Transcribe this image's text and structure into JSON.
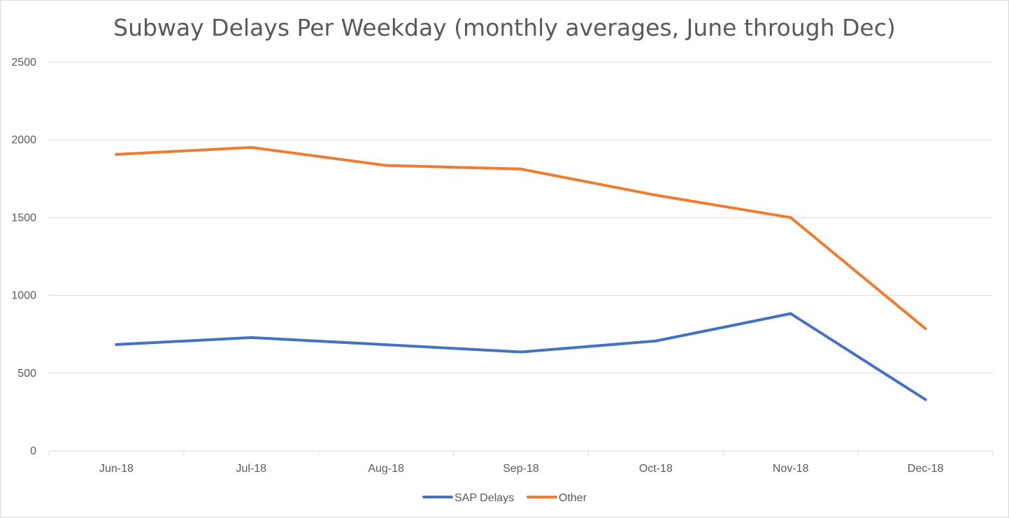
{
  "chart_data": {
    "type": "line",
    "title": "Subway Delays Per Weekday (monthly averages, June through Dec)",
    "categories": [
      "Jun-18",
      "Jul-18",
      "Aug-18",
      "Sep-18",
      "Oct-18",
      "Nov-18",
      "Dec-18"
    ],
    "series": [
      {
        "name": "SAP Delays",
        "color": "#4472c4",
        "values": [
          684,
          729,
          683,
          636,
          707,
          883,
          330
        ]
      },
      {
        "name": "Other",
        "color": "#ed7d31",
        "values": [
          1907,
          1952,
          1836,
          1813,
          1645,
          1501,
          786
        ]
      }
    ],
    "yticks": [
      0,
      500,
      1000,
      1500,
      2000,
      2500
    ],
    "ylim": [
      0,
      2500
    ],
    "xlabel": "",
    "ylabel": "",
    "grid": true,
    "legend_position": "bottom-center"
  }
}
